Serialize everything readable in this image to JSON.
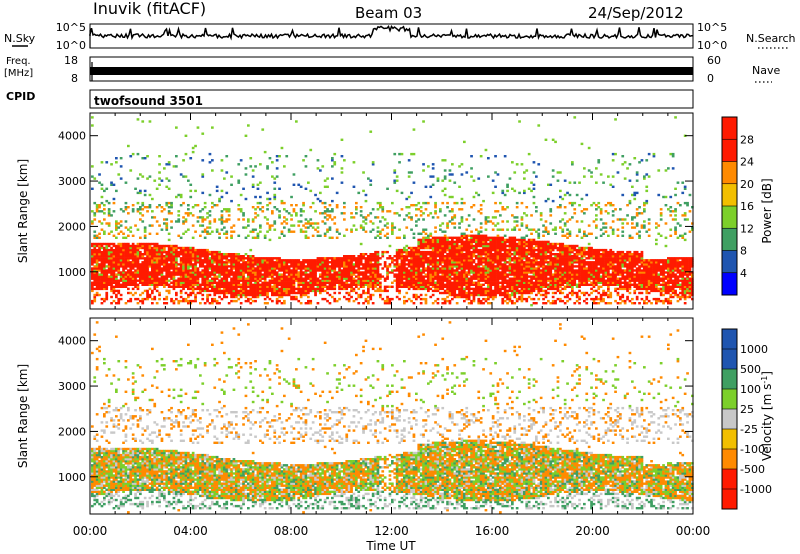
{
  "header": {
    "station": "Inuvik (fitACF)",
    "beam": "Beam 03",
    "date": "24/Sep/2012"
  },
  "sky_panel": {
    "left_label": "N.Sky",
    "left_ticks": [
      "10^5",
      "10^0"
    ],
    "right_ticks": [
      "10^5",
      "10^0"
    ],
    "right_label": "N.Search"
  },
  "freq_panel": {
    "left_label_1": "Freq.",
    "left_label_2": "[MHz]",
    "left_ticks": [
      "18",
      "8"
    ],
    "right_ticks": [
      "60",
      "0"
    ],
    "right_label": "Nave"
  },
  "cpid_panel": {
    "label": "CPID",
    "program": "twofsound 3501"
  },
  "colors": {
    "red": "#ff1a00",
    "orange": "#ff8a00",
    "gold": "#f2bf00",
    "light_green": "#7ccf2a",
    "teal_green": "#3f9f62",
    "blue": "#1f55b0",
    "grey": "#c8c8c8"
  },
  "chart_data": [
    {
      "type": "heatmap",
      "title": "",
      "xlabel": "Time UT",
      "ylabel": "Slant Range [km]",
      "x_ticks": [
        "00:00",
        "04:00",
        "08:00",
        "12:00",
        "16:00",
        "20:00",
        "00:00"
      ],
      "x_range_hours": [
        0,
        24
      ],
      "y_ticks": [
        1000,
        2000,
        3000,
        4000
      ],
      "ylim": [
        180,
        4500
      ],
      "colorbar": {
        "label": "Power [dB]",
        "ticks": [
          "28",
          "24",
          "20",
          "16",
          "12",
          "8",
          "4"
        ],
        "range": [
          0,
          30
        ]
      },
      "dominant": "Power 24–30 dB (red) concentrated between 600 and 1600 km slant range throughout the day, with weaker (green/orange/blue) scatter 1800–3500 km"
    },
    {
      "type": "heatmap",
      "title": "",
      "xlabel": "Time UT",
      "ylabel": "Slant Range [km]",
      "x_ticks": [
        "00:00",
        "04:00",
        "08:00",
        "12:00",
        "16:00",
        "20:00",
        "00:00"
      ],
      "x_range_hours": [
        0,
        24
      ],
      "y_ticks": [
        1000,
        2000,
        3000,
        4000
      ],
      "ylim": [
        180,
        4500
      ],
      "colorbar": {
        "label": "Velocity [m s^-1]",
        "ticks": [
          "1000",
          "500",
          "100",
          "25",
          "-25",
          "-100",
          "-500",
          "-1000"
        ]
      },
      "dominant": "Velocities mostly -100 to -500 m/s (orange) and 25 to 100 m/s (green) between 600 and 1600 km, near-zero (grey) ground scatter near 2000 km"
    }
  ]
}
